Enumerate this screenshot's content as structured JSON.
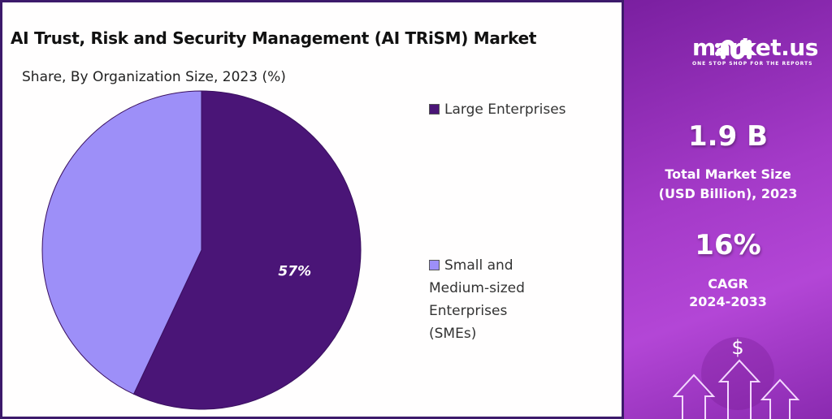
{
  "title": "AI Trust, Risk and Security Management (AI TRiSM) Market",
  "chart_data": {
    "type": "pie",
    "title": "Share, By Organization Size, 2023 (%)",
    "categories": [
      "Large Enterprises",
      "Small and Medium-sized Enterprises (SMEs)"
    ],
    "values": [
      57,
      43
    ],
    "data_labels": [
      "57%",
      ""
    ],
    "colors": [
      "#4a1577",
      "#9d8ff8"
    ],
    "legend_placement": "right"
  },
  "legend": {
    "large": "Large Enterprises",
    "sme_lines": [
      "Small and",
      "Medium-sized",
      "Enterprises",
      "(SMEs)"
    ]
  },
  "sidebar": {
    "logo_name": "market.us",
    "logo_tagline": "ONE STOP SHOP FOR THE REPORTS",
    "market_size": "1.9 B",
    "market_size_label_1": "Total Market Size",
    "market_size_label_2": "(USD Billion), 2023",
    "cagr": "16%",
    "cagr_label_1": "CAGR",
    "cagr_label_2": "2024-2033",
    "icon": "dollar-arrows-up-icon"
  }
}
